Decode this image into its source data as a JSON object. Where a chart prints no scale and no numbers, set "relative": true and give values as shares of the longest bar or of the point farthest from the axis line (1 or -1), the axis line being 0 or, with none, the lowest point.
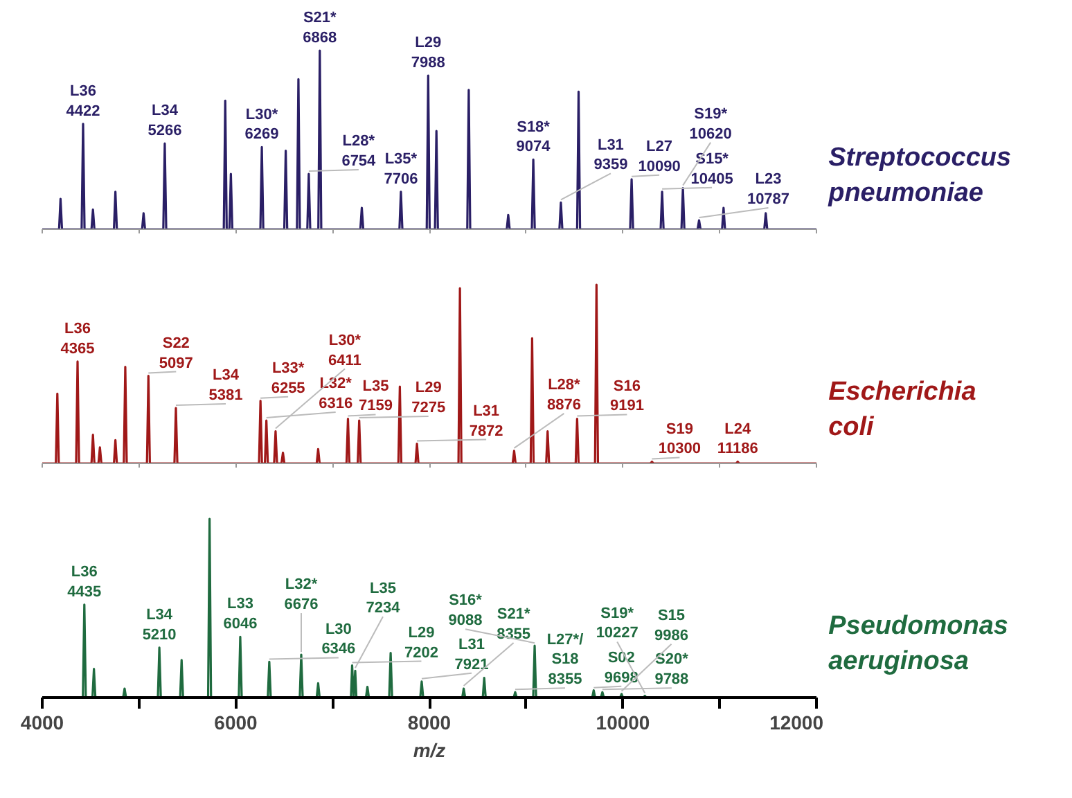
{
  "chart_data": [
    {
      "type": "line",
      "relative": true,
      "tick_labels": false,
      "xlim": [
        4000,
        12000
      ],
      "xticks": [
        4000,
        {
          "value": 5000,
          "label": null
        },
        6000,
        {
          "value": 7000,
          "label": null
        },
        8000,
        {
          "value": 9000,
          "label": null
        },
        10000,
        {
          "value": 11000,
          "label": null
        },
        12000
      ],
      "series": [
        {
          "name": "Streptococcus pneumoniae",
          "color": "#2a1f66",
          "x": [
            4000,
            4174,
            4189,
            4204,
            4407,
            4422,
            4437,
            4509,
            4524,
            4539,
            4741,
            4756,
            4771,
            5032,
            5047,
            5062,
            5251,
            5266,
            5281,
            5876,
            5891,
            5906,
            5934,
            5949,
            5964,
            6254,
            6269,
            6284,
            6501,
            6516,
            6531,
            6632,
            6647,
            6662,
            6739,
            6754,
            6769,
            6853,
            6868,
            6883,
            7287,
            7302,
            7317,
            7691,
            7706,
            7721,
            7973,
            7988,
            8003,
            8058,
            8073,
            8088,
            8392,
            8407,
            8422,
            8800,
            8815,
            8830,
            9059,
            9074,
            9089,
            9344,
            9359,
            9374,
            9527,
            9542,
            9557,
            10075,
            10090,
            10105,
            10390,
            10405,
            10420,
            10605,
            10620,
            10635,
            10772,
            10787,
            10802,
            11025,
            11040,
            11055,
            11461,
            11476,
            11491,
            12000
          ],
          "values": [
            0,
            0,
            0.17,
            0,
            0,
            0.59,
            0,
            0,
            0.11,
            0,
            0,
            0.21,
            0,
            0,
            0.09,
            0,
            0,
            0.48,
            0,
            0,
            0.72,
            0,
            0,
            0.31,
            0,
            0,
            0.46,
            0,
            0,
            0.44,
            0,
            0,
            0.84,
            0,
            0,
            0.31,
            0,
            0,
            1.0,
            0,
            0,
            0.12,
            0,
            0,
            0.21,
            0,
            0,
            0.86,
            0,
            0,
            0.55,
            0,
            0,
            0.78,
            0,
            0,
            0.08,
            0,
            0,
            0.39,
            0,
            0,
            0.15,
            0,
            0,
            0.77,
            0,
            0,
            0.28,
            0,
            0,
            0.21,
            0,
            0,
            0.23,
            0,
            0,
            0.05,
            0,
            0,
            0.12,
            0,
            0,
            0.09,
            0,
            0
          ]
        }
      ],
      "annotations": [
        {
          "text": "L36 4422",
          "x": 4422,
          "y": 0.59
        },
        {
          "text": "L34 5266",
          "x": 5266,
          "y": 0.48
        },
        {
          "text": "L30* 6269",
          "x": 6269,
          "y": 0.46
        },
        {
          "text": "S21* 6868",
          "x": 6868,
          "y": 1.0
        },
        {
          "text": "L28* 6754",
          "x": 6754,
          "y": 0.31
        },
        {
          "text": "L35* 7706",
          "x": 7706,
          "y": 0.21
        },
        {
          "text": "L29 7988",
          "x": 7988,
          "y": 0.86
        },
        {
          "text": "L31 9359",
          "x": 9359,
          "y": 0.15
        },
        {
          "text": "S18* 9074",
          "x": 9074,
          "y": 0.39
        },
        {
          "text": "L27 10090",
          "x": 10090,
          "y": 0.28
        },
        {
          "text": "S15* 10405",
          "x": 10405,
          "y": 0.21
        },
        {
          "text": "S19* 10620",
          "x": 10620,
          "y": 0.23
        },
        {
          "text": "L23 10787",
          "x": 10787,
          "y": 0.05
        }
      ]
    },
    {
      "type": "line",
      "relative": true,
      "tick_labels": false,
      "xlim": [
        4000,
        12000
      ],
      "xticks": [
        4000,
        {
          "value": 5000,
          "label": null
        },
        6000,
        {
          "value": 7000,
          "label": null
        },
        8000,
        {
          "value": 9000,
          "label": null
        },
        10000,
        {
          "value": 11000,
          "label": null
        },
        12000
      ],
      "series": [
        {
          "name": "Escherichia coli",
          "color": "#a01818",
          "x": [
            4000,
            4141,
            4156,
            4171,
            4350,
            4365,
            4380,
            4509,
            4524,
            4539,
            4581,
            4596,
            4611,
            4741,
            4756,
            4771,
            4843,
            4858,
            4873,
            5082,
            5097,
            5112,
            5366,
            5381,
            5396,
            6240,
            6255,
            6270,
            6301,
            6316,
            6331,
            6396,
            6411,
            6426,
            6472,
            6487,
            6502,
            6836,
            6851,
            6866,
            7144,
            7159,
            7174,
            7260,
            7275,
            7290,
            7680,
            7695,
            7710,
            7857,
            7872,
            7887,
            8301,
            8316,
            8331,
            8861,
            8876,
            8891,
            9047,
            9062,
            9077,
            9207,
            9222,
            9237,
            9512,
            9527,
            9542,
            9712,
            9727,
            9742,
            10285,
            10300,
            10315,
            11171,
            11186,
            11201,
            12000
          ],
          "values": [
            0,
            0,
            0.39,
            0,
            0,
            0.57,
            0,
            0,
            0.16,
            0,
            0,
            0.09,
            0,
            0,
            0.13,
            0,
            0,
            0.54,
            0,
            0,
            0.49,
            0,
            0,
            0.31,
            0,
            0,
            0.35,
            0,
            0,
            0.24,
            0,
            0,
            0.18,
            0,
            0,
            0.06,
            0,
            0,
            0.08,
            0,
            0,
            0.25,
            0,
            0,
            0.24,
            0,
            0,
            0.43,
            0,
            0,
            0.11,
            0,
            0,
            0.98,
            0,
            0,
            0.07,
            0,
            0,
            0.7,
            0,
            0,
            0.18,
            0,
            0,
            0.25,
            0,
            0,
            1.0,
            0,
            0,
            0.01,
            0,
            0,
            0.01,
            0,
            0
          ]
        }
      ],
      "annotations": [
        {
          "text": "L36 4365",
          "x": 4365,
          "y": 0.57
        },
        {
          "text": "S22 5097",
          "x": 5097,
          "y": 0.49
        },
        {
          "text": "L34 5381",
          "x": 5381,
          "y": 0.31
        },
        {
          "text": "L33* 6255",
          "x": 6255,
          "y": 0.35
        },
        {
          "text": "L32* 6316",
          "x": 6316,
          "y": 0.24
        },
        {
          "text": "L30* 6411",
          "x": 6411,
          "y": 0.18
        },
        {
          "text": "L35 7159",
          "x": 7159,
          "y": 0.25
        },
        {
          "text": "L29 7275",
          "x": 7275,
          "y": 0.24
        },
        {
          "text": "L31 7872",
          "x": 7872,
          "y": 0.11
        },
        {
          "text": "L28* 8876",
          "x": 8876,
          "y": 0.07
        },
        {
          "text": "S16 9191",
          "x": 9527,
          "y": 0.25
        },
        {
          "text": "S19 10300",
          "x": 10300,
          "y": 0.01
        },
        {
          "text": "L24 11186",
          "x": 11186,
          "y": 0.01
        }
      ]
    },
    {
      "type": "line",
      "relative": true,
      "tick_labels": "x",
      "xlim": [
        4000,
        12000
      ],
      "xlabel": "m/z",
      "xticks": [
        4000,
        {
          "value": 5000,
          "label": null
        },
        6000,
        {
          "value": 7000,
          "label": null
        },
        8000,
        {
          "value": 9000,
          "label": null
        },
        10000,
        {
          "value": 11000,
          "label": null
        },
        12000
      ],
      "series": [
        {
          "name": "Pseudomonas aeruginosa",
          "color": "#1f6b3f",
          "x": [
            4000,
            4420,
            4435,
            4450,
            4519,
            4534,
            4549,
            4836,
            4851,
            4866,
            5195,
            5210,
            5225,
            5425,
            5440,
            5455,
            5714,
            5729,
            5744,
            6031,
            6046,
            6061,
            6331,
            6346,
            6361,
            6661,
            6676,
            6691,
            6836,
            6851,
            6866,
            7190,
            7202,
            7218,
            7234,
            7246,
            7345,
            7360,
            7375,
            7585,
            7600,
            7615,
            7906,
            7921,
            7936,
            8340,
            8355,
            8370,
            8552,
            8567,
            8582,
            8872,
            8887,
            8902,
            9073,
            9088,
            9103,
            9683,
            9698,
            9713,
            9773,
            9788,
            9803,
            9971,
            9986,
            10001,
            10212,
            10227,
            10242,
            12000
          ],
          "values": [
            0,
            0,
            0.52,
            0,
            0,
            0.16,
            0,
            0,
            0.05,
            0,
            0,
            0.28,
            0,
            0,
            0.21,
            0,
            0,
            1.0,
            0,
            0,
            0.34,
            0,
            0,
            0.2,
            0,
            0,
            0.24,
            0,
            0,
            0.08,
            0,
            0,
            0.18,
            0,
            0.15,
            0,
            0,
            0.06,
            0,
            0,
            0.25,
            0,
            0,
            0.09,
            0,
            0,
            0.05,
            0,
            0,
            0.11,
            0,
            0,
            0.03,
            0,
            0,
            0.29,
            0,
            0,
            0.04,
            0,
            0,
            0.03,
            0,
            0,
            0.02,
            0,
            0,
            0.01,
            0,
            0
          ]
        }
      ],
      "annotations": [
        {
          "text": "L36 4435",
          "x": 4435,
          "y": 0.52
        },
        {
          "text": "L34 5210",
          "x": 5210,
          "y": 0.28
        },
        {
          "text": "L33 6046",
          "x": 6046,
          "y": 0.34
        },
        {
          "text": "L30 6346",
          "x": 6346,
          "y": 0.2
        },
        {
          "text": "L32* 6676",
          "x": 6676,
          "y": 0.24
        },
        {
          "text": "L29 7202",
          "x": 7202,
          "y": 0.18
        },
        {
          "text": "L35 7234",
          "x": 7234,
          "y": 0.15
        },
        {
          "text": "L31 7921",
          "x": 7921,
          "y": 0.09
        },
        {
          "text": "S21* 8355",
          "x": 8355,
          "y": 0.05
        },
        {
          "text": "L27*/ S18 8355",
          "x": 8887,
          "y": 0.03
        },
        {
          "text": "S16* 9088",
          "x": 9088,
          "y": 0.29
        },
        {
          "text": "S02 9698",
          "x": 9698,
          "y": 0.04
        },
        {
          "text": "S20* 9788",
          "x": 9788,
          "y": 0.03
        },
        {
          "text": "S15 9986",
          "x": 9986,
          "y": 0.02
        },
        {
          "text": "S19* 10227",
          "x": 10227,
          "y": 0.01
        }
      ]
    }
  ]
}
